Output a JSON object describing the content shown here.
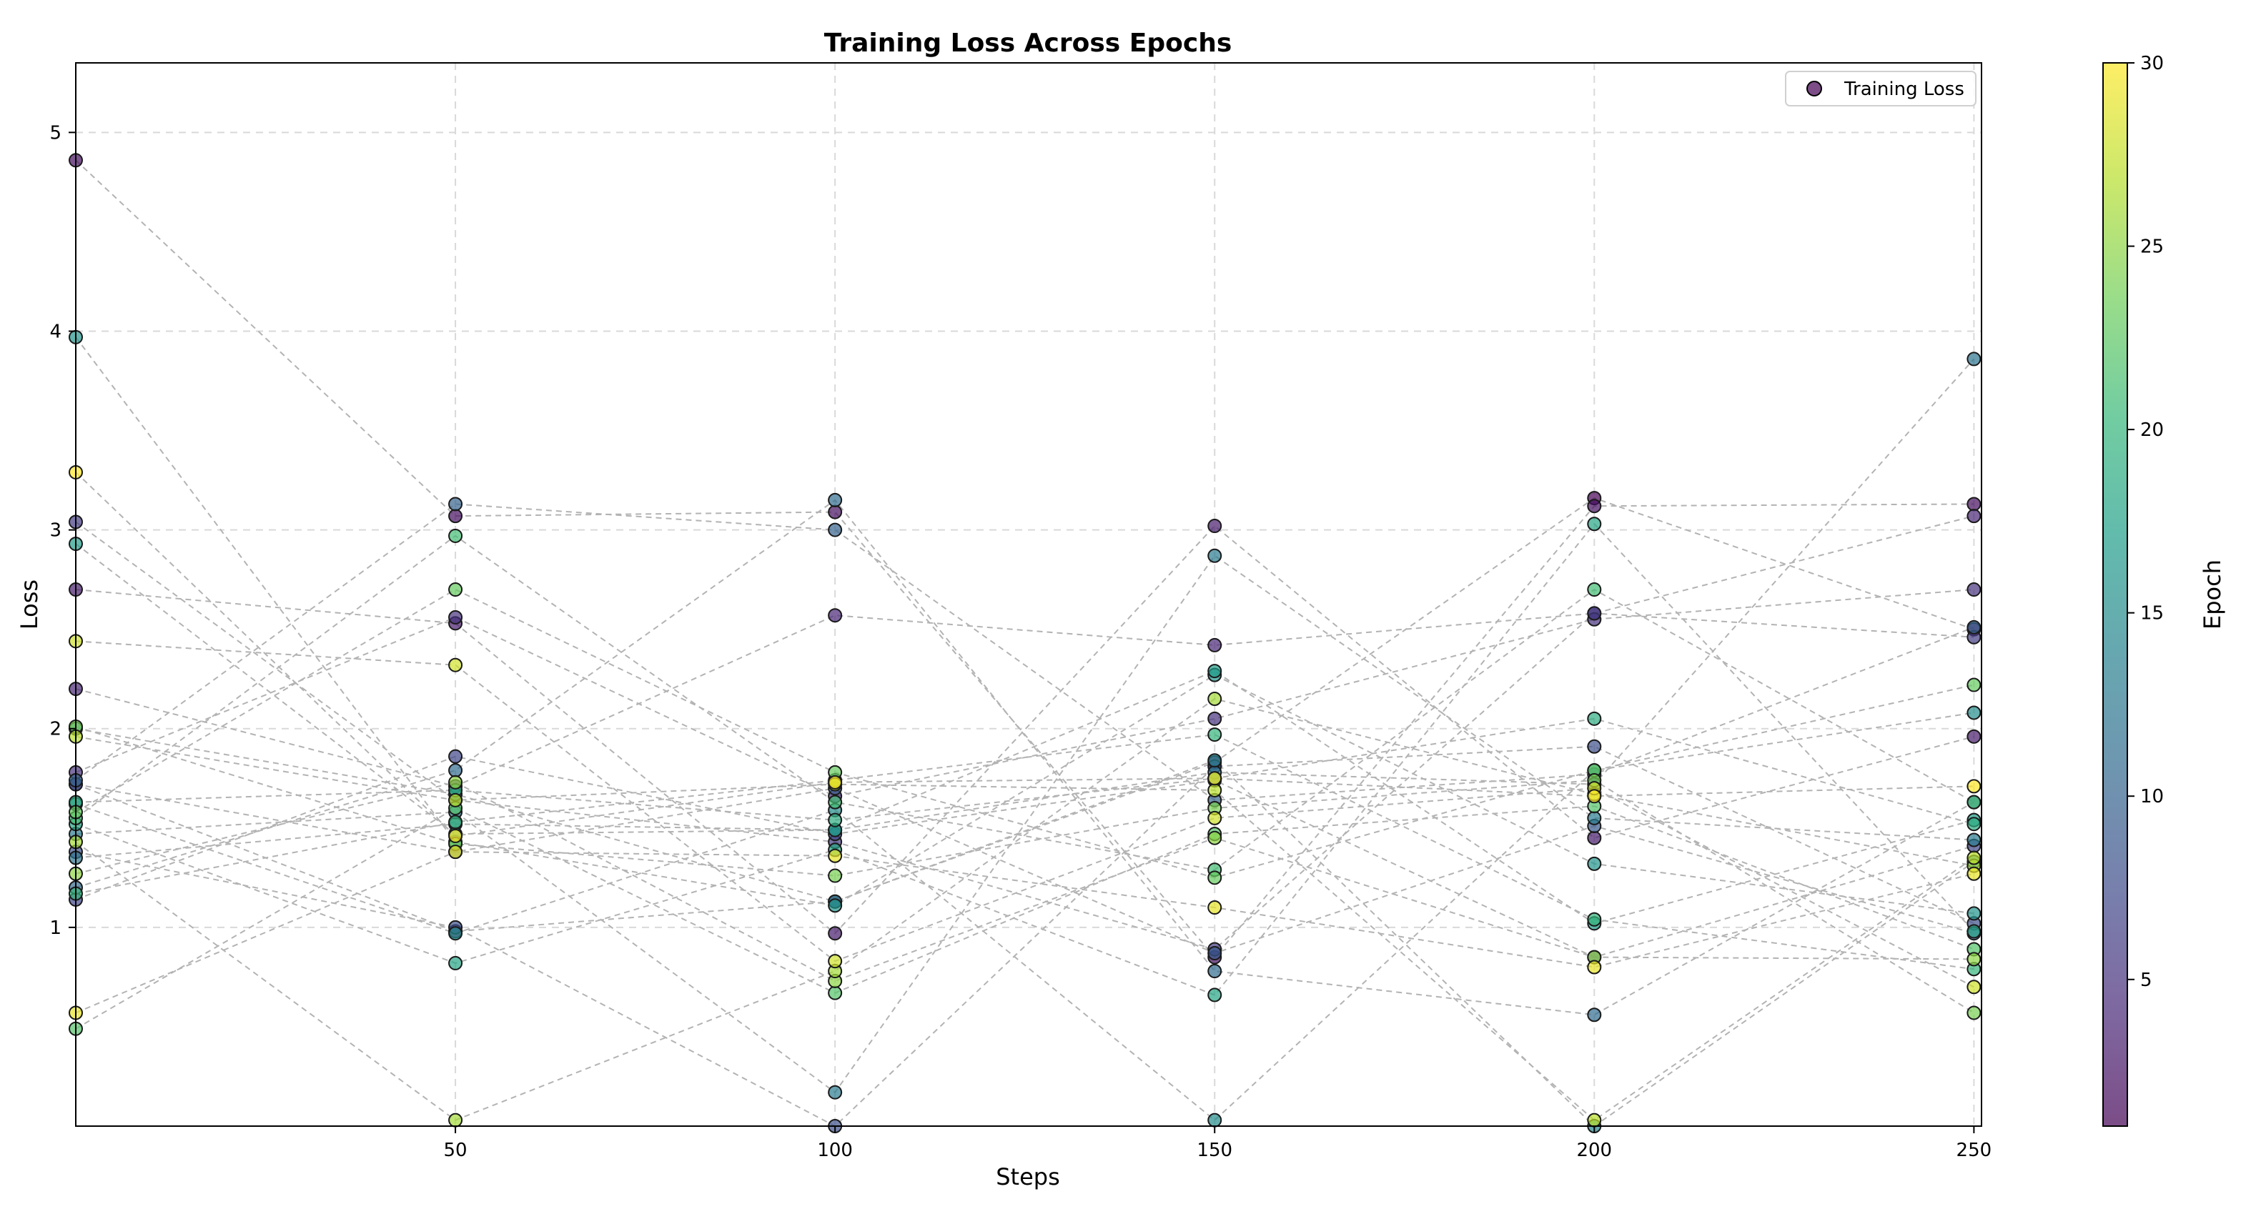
{
  "chart_data": {
    "type": "scatter",
    "title": "Training Loss Across Epochs",
    "xlabel": "Steps",
    "ylabel": "Loss",
    "xlim": [
      0,
      251
    ],
    "ylim": [
      0,
      5.35
    ],
    "xticks": [
      50,
      100,
      150,
      200,
      250
    ],
    "yticks": [
      1,
      2,
      3,
      4,
      5
    ],
    "grid": true,
    "legend": {
      "label": "Training Loss",
      "position": "top-right"
    },
    "colorbar": {
      "label": "Epoch",
      "min": 1,
      "max": 30,
      "ticks": [
        5,
        10,
        15,
        20,
        25,
        30
      ],
      "colormap": "viridis"
    },
    "marker_alpha": 0.7,
    "connector_style": "dashed-gray",
    "x": [
      0,
      50,
      100,
      150,
      200,
      250
    ],
    "series": [
      {
        "name": "Epoch 1",
        "epoch": 1,
        "values": [
          1.72,
          0.98,
          1.13,
          1.83,
          3.16,
          2.5
        ]
      },
      {
        "name": "Epoch 2",
        "epoch": 2,
        "values": [
          4.86,
          3.07,
          3.09,
          0.85,
          3.12,
          3.13
        ]
      },
      {
        "name": "Epoch 3",
        "epoch": 3,
        "values": [
          2.7,
          2.53,
          0.97,
          3.02,
          1.45,
          1.96
        ]
      },
      {
        "name": "Epoch 4",
        "epoch": 4,
        "values": [
          2.2,
          1.71,
          2.57,
          2.42,
          2.58,
          3.07
        ]
      },
      {
        "name": "Epoch 5",
        "epoch": 5,
        "values": [
          1.78,
          2.56,
          1.66,
          2.05,
          2.55,
          2.7
        ]
      },
      {
        "name": "Epoch 6",
        "epoch": 6,
        "values": [
          3.04,
          1.64,
          1.43,
          0.89,
          2.58,
          2.46
        ]
      },
      {
        "name": "Epoch 7",
        "epoch": 7,
        "values": [
          1.14,
          1.86,
          1.47,
          1.74,
          0.85,
          1.41
        ]
      },
      {
        "name": "Epoch 8",
        "epoch": 8,
        "values": [
          1.38,
          1.0,
          0.0,
          1.81,
          1.91,
          1.02
        ]
      },
      {
        "name": "Epoch 9",
        "epoch": 9,
        "values": [
          1.72,
          1.38,
          1.7,
          0.87,
          1.51,
          0.97
        ]
      },
      {
        "name": "Epoch 10",
        "epoch": 10,
        "values": [
          1.74,
          3.13,
          3.0,
          1.64,
          1.77,
          2.51
        ]
      },
      {
        "name": "Epoch 11",
        "epoch": 11,
        "values": [
          1.2,
          1.79,
          3.15,
          0.78,
          0.56,
          1.63
        ]
      },
      {
        "name": "Epoch 12",
        "epoch": 12,
        "values": [
          1.35,
          1.52,
          1.49,
          1.78,
          1.72,
          3.86
        ]
      },
      {
        "name": "Epoch 13",
        "epoch": 13,
        "values": [
          1.47,
          1.58,
          0.17,
          2.87,
          1.55,
          1.44
        ]
      },
      {
        "name": "Epoch 14",
        "epoch": 14,
        "values": [
          2.0,
          1.67,
          1.13,
          1.84,
          0.0,
          1.33
        ]
      },
      {
        "name": "Epoch 15",
        "epoch": 15,
        "values": [
          1.62,
          0.97,
          1.59,
          0.03,
          1.79,
          2.08
        ]
      },
      {
        "name": "Epoch 16",
        "epoch": 16,
        "values": [
          3.97,
          1.43,
          1.11,
          2.27,
          1.32,
          1.07
        ]
      },
      {
        "name": "Epoch 17",
        "epoch": 17,
        "values": [
          2.93,
          1.47,
          1.49,
          2.29,
          1.02,
          1.54
        ]
      },
      {
        "name": "Epoch 18",
        "epoch": 18,
        "values": [
          1.52,
          0.82,
          1.39,
          0.66,
          3.03,
          0.98
        ]
      },
      {
        "name": "Epoch 19",
        "epoch": 19,
        "values": [
          1.63,
          1.69,
          1.54,
          1.75,
          2.05,
          1.52
        ]
      },
      {
        "name": "Epoch 20",
        "epoch": 20,
        "values": [
          1.17,
          1.53,
          1.74,
          1.97,
          1.04,
          0.79
        ]
      },
      {
        "name": "Epoch 21",
        "epoch": 21,
        "values": [
          1.55,
          2.97,
          1.63,
          1.29,
          2.7,
          1.63
        ]
      },
      {
        "name": "Epoch 22",
        "epoch": 22,
        "values": [
          0.49,
          1.6,
          0.67,
          1.47,
          1.61,
          0.89
        ]
      },
      {
        "name": "Epoch 23",
        "epoch": 23,
        "values": [
          1.58,
          2.7,
          1.78,
          1.25,
          1.79,
          2.22
        ]
      },
      {
        "name": "Epoch 24",
        "epoch": 24,
        "values": [
          2.01,
          1.42,
          1.26,
          1.6,
          1.74,
          0.57
        ]
      },
      {
        "name": "Epoch 25",
        "epoch": 25,
        "values": [
          1.27,
          1.73,
          0.73,
          1.45,
          0.85,
          0.84
        ]
      },
      {
        "name": "Epoch 26",
        "epoch": 26,
        "values": [
          1.43,
          0.03,
          0.78,
          2.15,
          1.67,
          1.31
        ]
      },
      {
        "name": "Epoch 27",
        "epoch": 27,
        "values": [
          1.96,
          1.64,
          1.72,
          1.69,
          0.03,
          1.35
        ]
      },
      {
        "name": "Epoch 28",
        "epoch": 28,
        "values": [
          2.44,
          2.32,
          0.83,
          1.55,
          1.7,
          0.7
        ]
      },
      {
        "name": "Epoch 29",
        "epoch": 29,
        "values": [
          0.57,
          1.38,
          1.36,
          1.1,
          0.8,
          1.27
        ]
      },
      {
        "name": "Epoch 30",
        "epoch": 30,
        "values": [
          3.29,
          1.46,
          1.73,
          1.75,
          1.66,
          1.71
        ]
      }
    ]
  }
}
